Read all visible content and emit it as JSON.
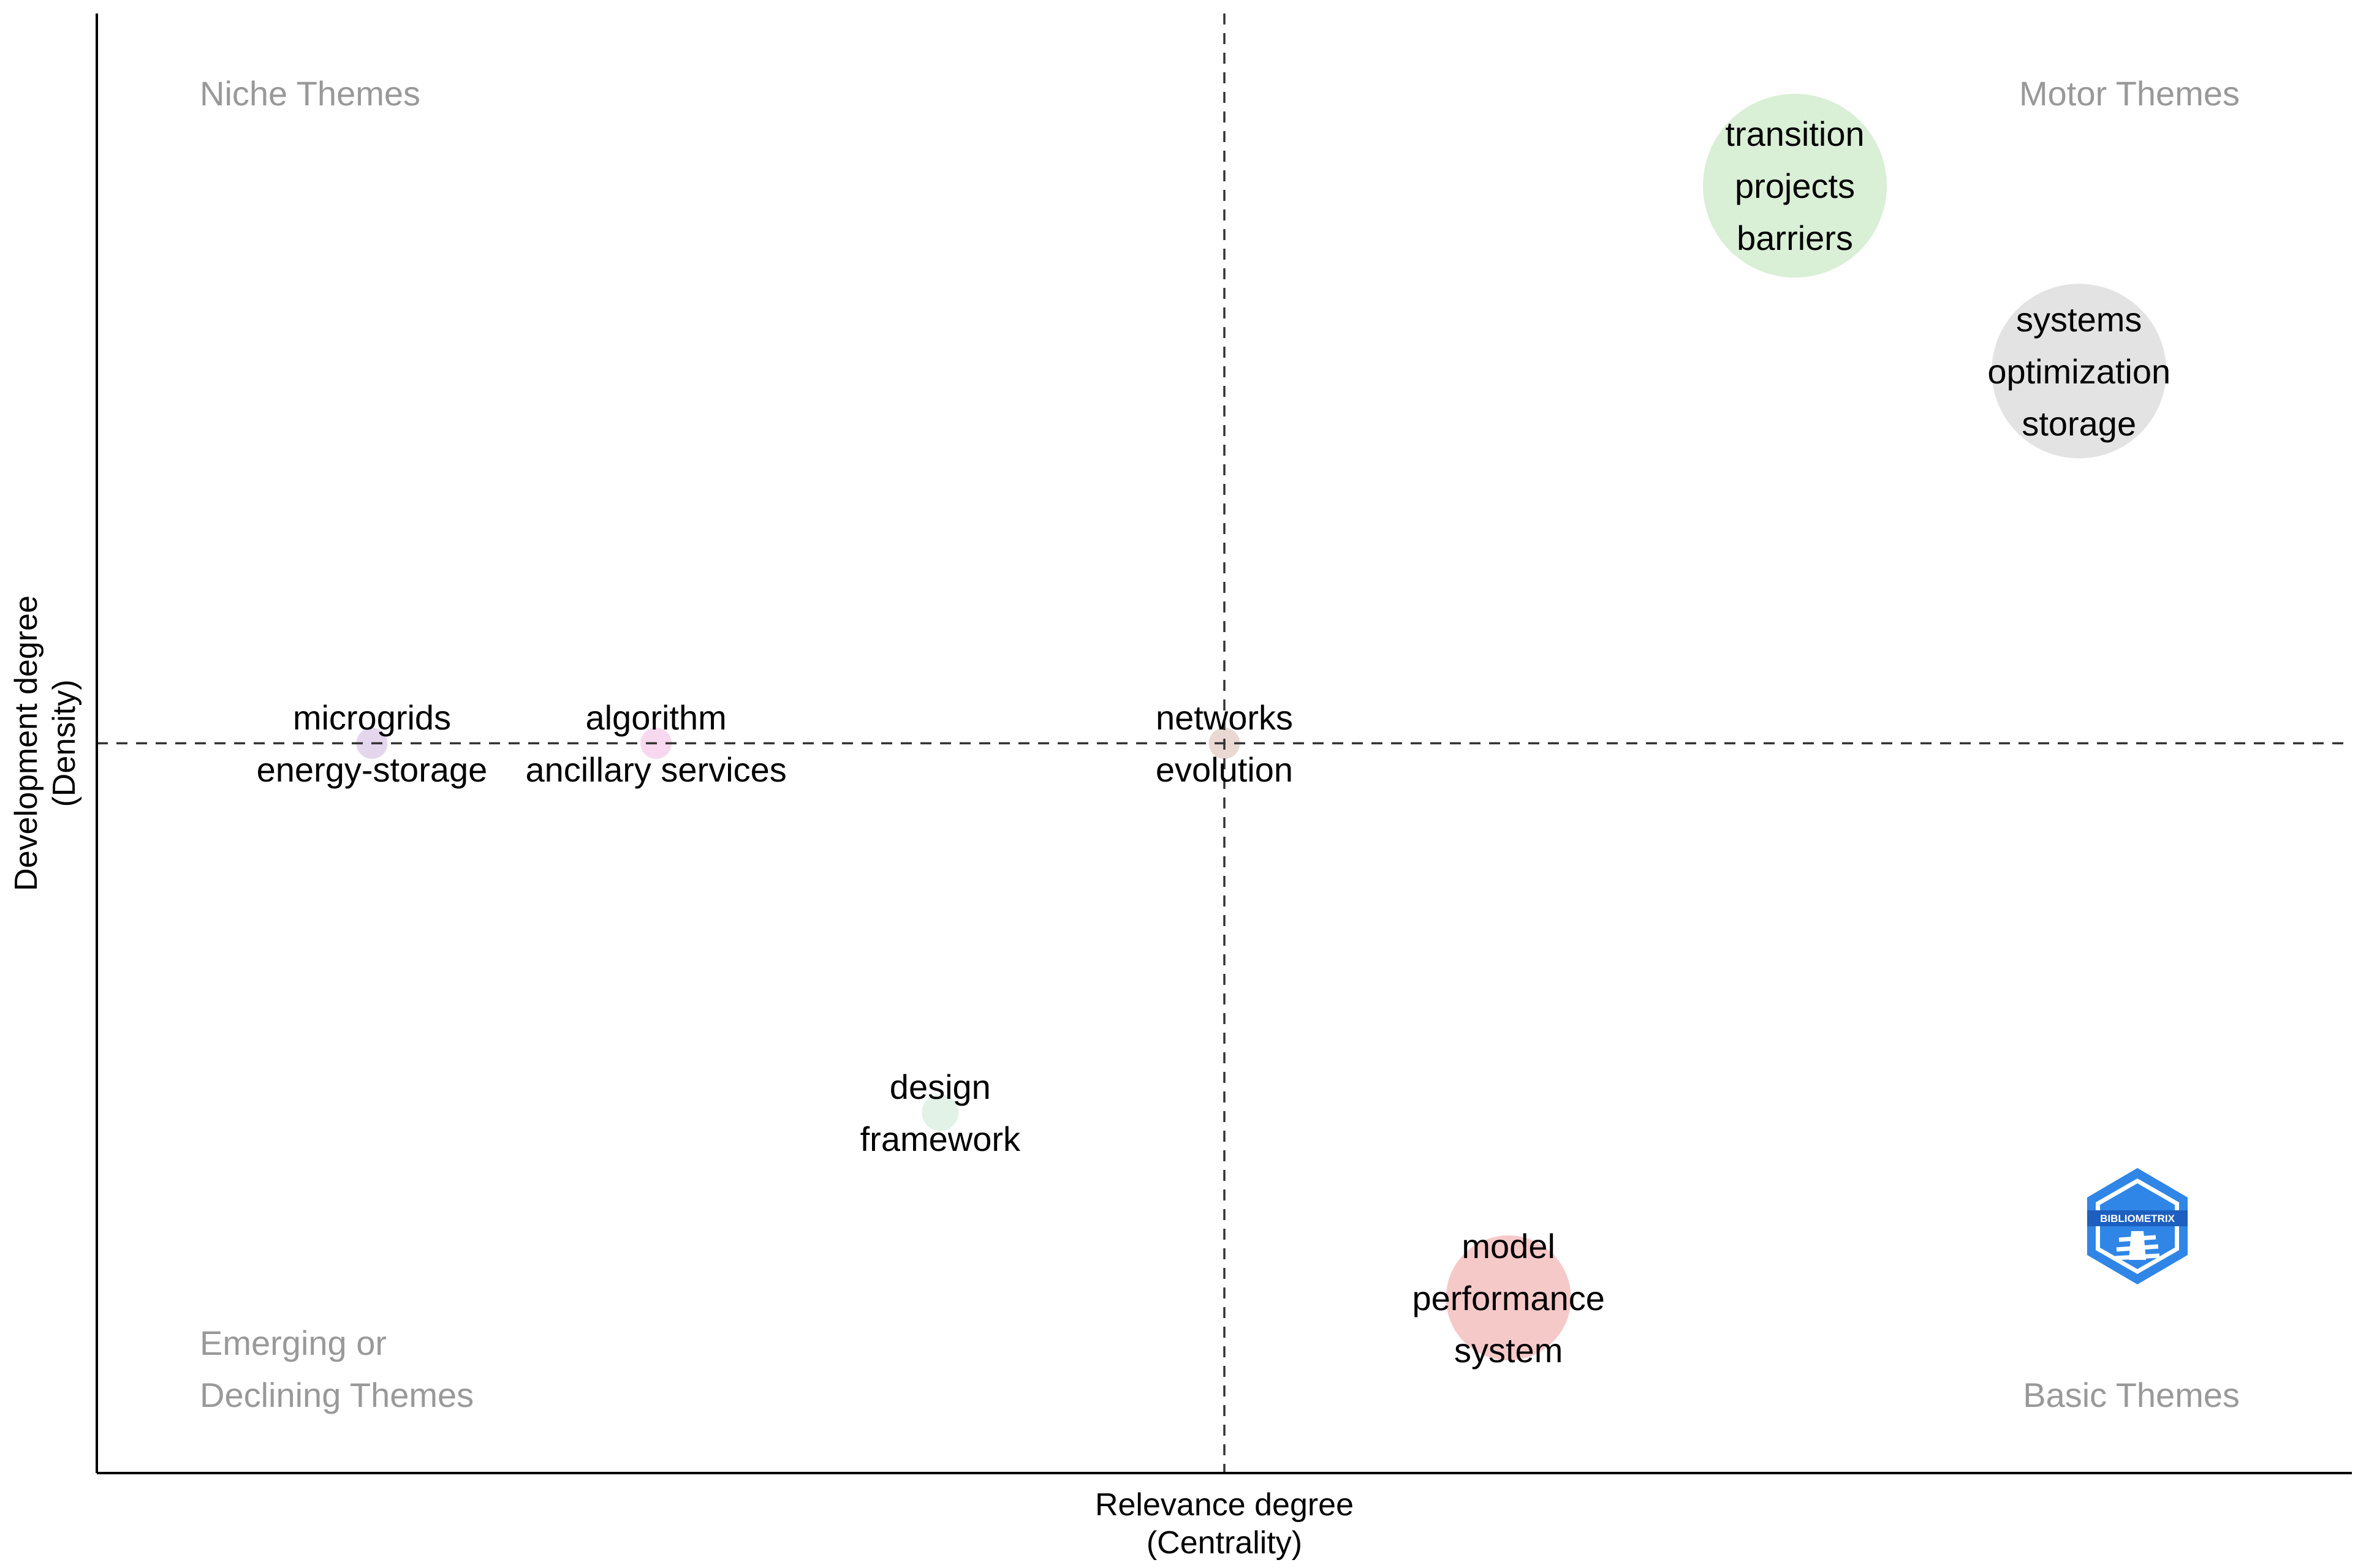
{
  "chart_data": {
    "type": "scatter",
    "subtype": "thematic-map",
    "xlabel": [
      "Relevance degree",
      "(Centrality)"
    ],
    "ylabel": [
      "Development degree",
      "(Density)"
    ],
    "xlim": [
      0,
      1
    ],
    "ylim": [
      0,
      1
    ],
    "x_reference": 0.5,
    "y_reference": 0.5,
    "quadrants": {
      "top_left": [
        "Niche Themes"
      ],
      "top_right": [
        "Motor Themes"
      ],
      "bottom_left": [
        "Emerging or",
        "Declining Themes"
      ],
      "bottom_right": [
        "Basic Themes"
      ]
    },
    "themes": [
      {
        "name": "transition",
        "labels": [
          "transition",
          "projects",
          "barriers"
        ],
        "x": 0.753,
        "y": 0.882,
        "size": 1.0,
        "color": "#d9efd6"
      },
      {
        "name": "systems",
        "labels": [
          "systems",
          "optimization",
          "storage"
        ],
        "x": 0.879,
        "y": 0.755,
        "size": 0.95,
        "color": "#e3e3e3"
      },
      {
        "name": "microgrids",
        "labels": [
          "microgrids",
          "energy-storage"
        ],
        "x": 0.122,
        "y": 0.5,
        "size": 0.17,
        "color": "#e4d6ec"
      },
      {
        "name": "algorithm",
        "labels": [
          "algorithm",
          "ancillary services"
        ],
        "x": 0.248,
        "y": 0.5,
        "size": 0.17,
        "color": "#f7d8ef"
      },
      {
        "name": "networks",
        "labels": [
          "networks",
          "evolution"
        ],
        "x": 0.5,
        "y": 0.5,
        "size": 0.17,
        "color": "#ead9d2"
      },
      {
        "name": "design",
        "labels": [
          "design",
          "framework"
        ],
        "x": 0.374,
        "y": 0.247,
        "size": 0.2,
        "color": "#e2f2e6"
      },
      {
        "name": "model",
        "labels": [
          "model",
          "performance",
          "system"
        ],
        "x": 0.626,
        "y": 0.12,
        "size": 0.68,
        "color": "#f6c9c9"
      }
    ],
    "logo_text": "BIBLIOMETRIX"
  }
}
